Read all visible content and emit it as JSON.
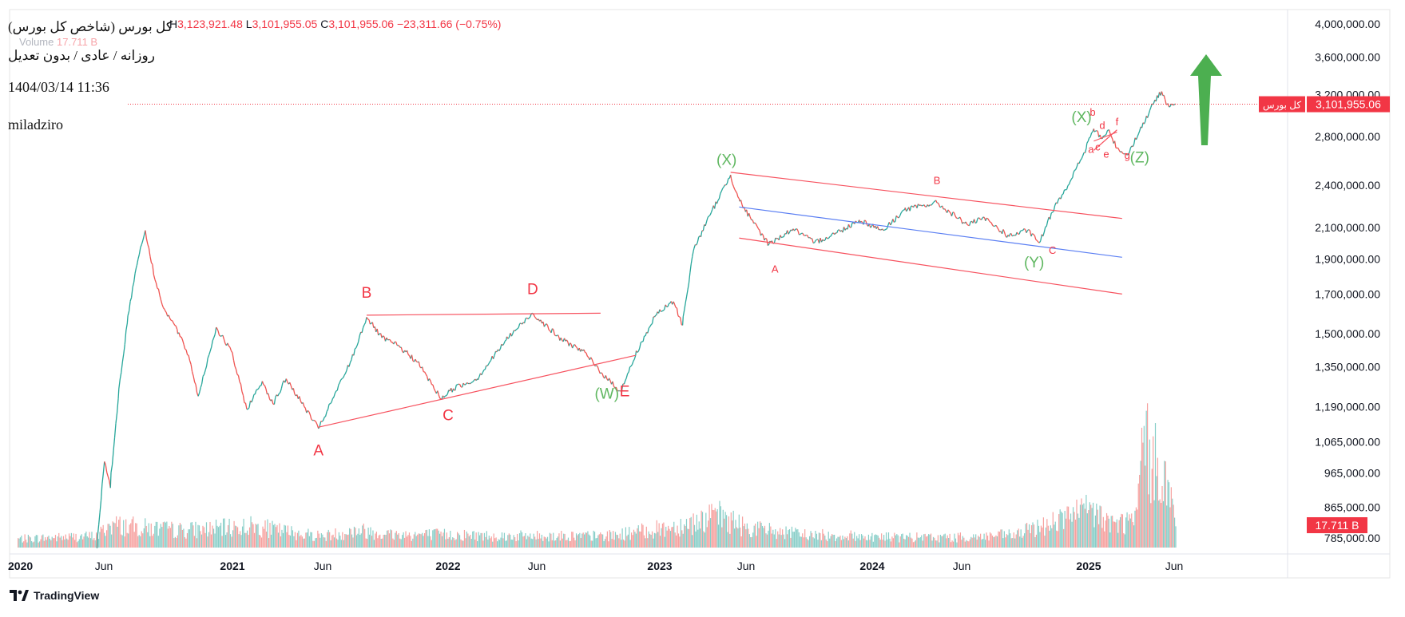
{
  "header": {
    "ohlc": {
      "high_label": "H",
      "high": "3,123,921.48",
      "low_label": "L",
      "low": "3,101,955.05",
      "close_label": "C",
      "close": "3,101,955.06",
      "change": "−23,311.66 (−0.75%)"
    },
    "volume_label": "Volume",
    "volume_value": "17.711 B"
  },
  "info": {
    "title": "کل بورس (شاخص کل بورس)",
    "subtitle": "روزانه / عادی / بدون تعدیل",
    "datetime": "1404/03/14 11:36",
    "author": "miladziro"
  },
  "branding": {
    "name": "TradingView"
  },
  "colors": {
    "up": "#26a69a",
    "down": "#ef5350",
    "wave_label_red": "#f23645",
    "wave_label_green": "#5fb760",
    "channel_line": "#f7525f",
    "midline": "#5b7ff3",
    "arrow": "#4caf50",
    "last_price_tag": "#f23645"
  },
  "chart_data": {
    "type": "line",
    "scale": "log",
    "symbol_label": "کل بورس",
    "last_price": "3,101,955.06",
    "last_price_value": 3101955,
    "last_volume": "17.711 B",
    "x_ticks": [
      {
        "label": "2020",
        "date": "2020-01-01"
      },
      {
        "label": "Jun",
        "date": "2020-06-01"
      },
      {
        "label": "2021",
        "date": "2021-01-01"
      },
      {
        "label": "Jun",
        "date": "2021-06-01"
      },
      {
        "label": "2022",
        "date": "2022-01-01"
      },
      {
        "label": "Jun",
        "date": "2022-06-01"
      },
      {
        "label": "2023",
        "date": "2023-01-01"
      },
      {
        "label": "Jun",
        "date": "2023-06-01"
      },
      {
        "label": "2024",
        "date": "2024-01-01"
      },
      {
        "label": "Jun",
        "date": "2024-06-01"
      },
      {
        "label": "2025",
        "date": "2025-01-01"
      },
      {
        "label": "Jun",
        "date": "2025-06-01"
      }
    ],
    "y_ticks": [
      {
        "label": "4,000,000.00",
        "value": 4000000
      },
      {
        "label": "3,600,000.00",
        "value": 3600000
      },
      {
        "label": "3,200,000.00",
        "value": 3200000
      },
      {
        "label": "2,800,000.00",
        "value": 2800000
      },
      {
        "label": "2,400,000.00",
        "value": 2400000
      },
      {
        "label": "2,100,000.00",
        "value": 2100000
      },
      {
        "label": "1,900,000.00",
        "value": 1900000
      },
      {
        "label": "1,700,000.00",
        "value": 1700000
      },
      {
        "label": "1,500,000.00",
        "value": 1500000
      },
      {
        "label": "1,350,000.00",
        "value": 1350000
      },
      {
        "label": "1,190,000.00",
        "value": 1190000
      },
      {
        "label": "1,065,000.00",
        "value": 1065000
      },
      {
        "label": "965,000.00",
        "value": 965000
      },
      {
        "label": "865,000.00",
        "value": 865000
      },
      {
        "label": "785,000.00",
        "value": 785000
      }
    ],
    "price_path": [
      [
        "2020-05-20",
        760000
      ],
      [
        "2020-06-02",
        1000000
      ],
      [
        "2020-06-12",
        920000
      ],
      [
        "2020-06-25",
        1220000
      ],
      [
        "2020-07-10",
        1550000
      ],
      [
        "2020-07-25",
        1850000
      ],
      [
        "2020-08-09",
        2080000
      ],
      [
        "2020-08-25",
        1780000
      ],
      [
        "2020-09-10",
        1620000
      ],
      [
        "2020-10-01",
        1520000
      ],
      [
        "2020-10-20",
        1400000
      ],
      [
        "2020-11-05",
        1230000
      ],
      [
        "2020-12-05",
        1530000
      ],
      [
        "2020-12-30",
        1420000
      ],
      [
        "2021-01-25",
        1180000
      ],
      [
        "2021-02-20",
        1290000
      ],
      [
        "2021-03-10",
        1200000
      ],
      [
        "2021-04-01",
        1300000
      ],
      [
        "2021-05-25",
        1110000
      ],
      [
        "2021-06-10",
        1180000
      ],
      [
        "2021-07-20",
        1380000
      ],
      [
        "2021-08-15",
        1580000
      ],
      [
        "2021-09-10",
        1480000
      ],
      [
        "2021-10-10",
        1440000
      ],
      [
        "2021-11-10",
        1370000
      ],
      [
        "2021-12-20",
        1220000
      ],
      [
        "2022-01-10",
        1260000
      ],
      [
        "2022-02-20",
        1300000
      ],
      [
        "2022-04-10",
        1470000
      ],
      [
        "2022-05-25",
        1600000
      ],
      [
        "2022-07-10",
        1480000
      ],
      [
        "2022-08-20",
        1420000
      ],
      [
        "2022-10-01",
        1300000
      ],
      [
        "2022-10-25",
        1250000
      ],
      [
        "2022-11-20",
        1400000
      ],
      [
        "2022-12-25",
        1590000
      ],
      [
        "2023-01-25",
        1660000
      ],
      [
        "2023-02-10",
        1540000
      ],
      [
        "2023-03-01",
        1950000
      ],
      [
        "2023-04-01",
        2200000
      ],
      [
        "2023-05-05",
        2480000
      ],
      [
        "2023-05-20",
        2300000
      ],
      [
        "2023-06-10",
        2150000
      ],
      [
        "2023-07-10",
        1990000
      ],
      [
        "2023-08-20",
        2090000
      ],
      [
        "2023-09-25",
        2000000
      ],
      [
        "2023-11-10",
        2080000
      ],
      [
        "2023-12-10",
        2150000
      ],
      [
        "2024-01-20",
        2080000
      ],
      [
        "2024-02-25",
        2220000
      ],
      [
        "2024-04-20",
        2270000
      ],
      [
        "2024-06-10",
        2120000
      ],
      [
        "2024-07-10",
        2160000
      ],
      [
        "2024-08-20",
        2040000
      ],
      [
        "2024-09-20",
        2080000
      ],
      [
        "2024-10-10",
        2000000
      ],
      [
        "2024-11-05",
        2250000
      ],
      [
        "2024-12-05",
        2460000
      ],
      [
        "2024-12-28",
        2700000
      ],
      [
        "2025-01-10",
        2870000
      ],
      [
        "2025-01-25",
        2780000
      ],
      [
        "2025-02-05",
        2860000
      ],
      [
        "2025-02-20",
        2700000
      ],
      [
        "2025-03-10",
        2640000
      ],
      [
        "2025-04-01",
        2850000
      ],
      [
        "2025-04-25",
        3100000
      ],
      [
        "2025-05-10",
        3230000
      ],
      [
        "2025-05-20",
        3100000
      ],
      [
        "2025-06-04",
        3101955
      ]
    ],
    "annotations": {
      "triangle_upper": [
        [
          "2021-08-15",
          1590000
        ],
        [
          "2022-09-20",
          1600000
        ]
      ],
      "triangle_lower": [
        [
          "2021-05-25",
          1115000
        ],
        [
          "2022-11-20",
          1400000
        ]
      ],
      "channel_upper": [
        [
          "2023-05-05",
          2500000
        ],
        [
          "2025-03-01",
          2160000
        ]
      ],
      "channel_mid": [
        [
          "2023-05-20",
          2240000
        ],
        [
          "2025-03-01",
          1910000
        ]
      ],
      "channel_lower": [
        [
          "2023-05-20",
          2030000
        ],
        [
          "2025-03-01",
          1700000
        ]
      ],
      "mini_triangle_a": [
        [
          "2025-01-10",
          2760000
        ],
        [
          "2025-02-20",
          2840000
        ]
      ],
      "mini_triangle_b": [
        [
          "2025-01-10",
          2680000
        ],
        [
          "2025-02-20",
          2860000
        ]
      ],
      "wave_labels": [
        {
          "text": "A",
          "color": "red",
          "date": "2021-05-25",
          "value": 1020000
        },
        {
          "text": "B",
          "color": "red",
          "date": "2021-08-15",
          "value": 1680000
        },
        {
          "text": "C",
          "color": "red",
          "date": "2022-01-01",
          "value": 1140000
        },
        {
          "text": "D",
          "color": "red",
          "date": "2022-05-25",
          "value": 1700000
        },
        {
          "text": "E",
          "color": "red",
          "date": "2022-11-01",
          "value": 1230000
        },
        {
          "text": "(W)",
          "color": "green",
          "date": "2022-10-01",
          "value": 1220000
        },
        {
          "text": "(X)",
          "color": "green",
          "date": "2023-04-28",
          "value": 2560000
        },
        {
          "text": "A",
          "color": "red_small",
          "date": "2023-07-20",
          "value": 1820000
        },
        {
          "text": "B",
          "color": "red_small",
          "date": "2024-04-20",
          "value": 2410000
        },
        {
          "text": "C",
          "color": "red_small",
          "date": "2024-11-01",
          "value": 1930000
        },
        {
          "text": "(Y)",
          "color": "green",
          "date": "2024-10-01",
          "value": 1850000
        },
        {
          "text": "(X)",
          "color": "green",
          "date": "2024-12-20",
          "value": 2930000
        },
        {
          "text": "a",
          "color": "red_small",
          "date": "2025-01-05",
          "value": 2660000
        },
        {
          "text": "b",
          "color": "red_small",
          "date": "2025-01-08",
          "value": 2990000
        },
        {
          "text": "c",
          "color": "red_small",
          "date": "2025-01-17",
          "value": 2680000
        },
        {
          "text": "d",
          "color": "red_small",
          "date": "2025-01-25",
          "value": 2870000
        },
        {
          "text": "e",
          "color": "red_small",
          "date": "2025-02-01",
          "value": 2620000
        },
        {
          "text": "f",
          "color": "red_small",
          "date": "2025-02-20",
          "value": 2900000
        },
        {
          "text": "g",
          "color": "red_small",
          "date": "2025-03-10",
          "value": 2610000
        },
        {
          "text": "(Z)",
          "color": "green",
          "date": "2025-04-01",
          "value": 2580000
        }
      ]
    },
    "volume_profile": [
      [
        "2020-01-01",
        0.6
      ],
      [
        "2020-05-20",
        0.8
      ],
      [
        "2020-06-10",
        1.6
      ],
      [
        "2020-08-01",
        1.4
      ],
      [
        "2020-10-01",
        1.2
      ],
      [
        "2020-12-01",
        1.3
      ],
      [
        "2021-02-01",
        1.5
      ],
      [
        "2021-04-01",
        1.1
      ],
      [
        "2021-06-01",
        0.8
      ],
      [
        "2021-08-01",
        1.2
      ],
      [
        "2021-10-01",
        0.9
      ],
      [
        "2022-01-01",
        0.9
      ],
      [
        "2022-04-01",
        0.8
      ],
      [
        "2022-07-01",
        0.8
      ],
      [
        "2022-10-01",
        0.8
      ],
      [
        "2022-12-15",
        1.2
      ],
      [
        "2023-02-01",
        1.5
      ],
      [
        "2023-04-15",
        2.2
      ],
      [
        "2023-06-01",
        1.4
      ],
      [
        "2023-09-01",
        0.9
      ],
      [
        "2023-12-01",
        0.8
      ],
      [
        "2024-03-01",
        0.7
      ],
      [
        "2024-06-01",
        0.7
      ],
      [
        "2024-09-01",
        0.9
      ],
      [
        "2024-11-15",
        2.0
      ],
      [
        "2025-01-01",
        2.6
      ],
      [
        "2025-02-15",
        1.6
      ],
      [
        "2025-03-25",
        2.0
      ],
      [
        "2025-04-10",
        8.5
      ],
      [
        "2025-04-20",
        5.0
      ],
      [
        "2025-05-05",
        6.5
      ],
      [
        "2025-05-20",
        4.0
      ],
      [
        "2025-06-04",
        1.8
      ]
    ]
  }
}
